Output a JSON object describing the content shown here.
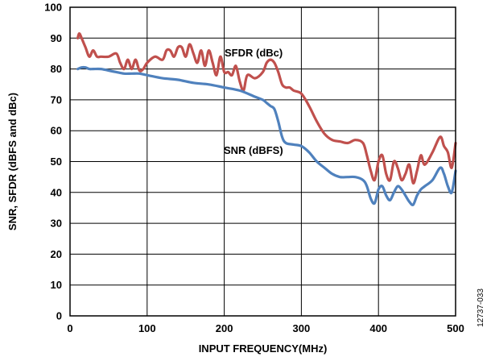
{
  "chart_data": {
    "type": "line",
    "xlabel": "INPUT FREQUENCY(MHz)",
    "ylabel": "SNR, SFDR (dBFS and dBc)",
    "xlim": [
      0,
      500
    ],
    "ylim": [
      0,
      100
    ],
    "x_ticks": [
      0,
      100,
      200,
      300,
      400,
      500
    ],
    "y_ticks": [
      0,
      10,
      20,
      30,
      40,
      50,
      60,
      70,
      80,
      90,
      100
    ],
    "grid": true,
    "figure_id": "12737-033",
    "series": [
      {
        "name": "SFDR (dBc)",
        "color": "#c0504d",
        "x": [
          10,
          12,
          15,
          20,
          25,
          30,
          35,
          40,
          50,
          60,
          65,
          70,
          75,
          80,
          85,
          90,
          95,
          100,
          110,
          120,
          125,
          130,
          135,
          140,
          145,
          150,
          155,
          160,
          165,
          170,
          175,
          180,
          185,
          190,
          195,
          200,
          205,
          210,
          215,
          220,
          225,
          230,
          240,
          250,
          255,
          260,
          265,
          270,
          275,
          280,
          285,
          290,
          300,
          310,
          320,
          330,
          340,
          350,
          360,
          370,
          380,
          385,
          390,
          395,
          400,
          405,
          410,
          415,
          420,
          425,
          430,
          435,
          440,
          445,
          450,
          455,
          460,
          470,
          480,
          485,
          490,
          495,
          500
        ],
        "y": [
          90,
          91.5,
          90,
          87,
          84,
          86,
          84,
          84,
          84,
          85,
          82,
          80,
          83,
          80,
          83,
          79.5,
          80,
          82,
          84,
          83,
          86,
          86,
          84,
          87,
          87,
          84,
          88,
          85,
          82,
          86,
          81,
          86,
          82,
          78,
          84,
          79,
          79,
          78,
          81,
          76,
          73,
          78,
          77,
          79,
          82,
          83,
          82,
          79,
          75,
          74,
          74,
          73,
          72,
          68,
          63,
          59,
          57,
          56.5,
          56,
          57,
          56,
          52,
          47,
          44,
          50,
          52,
          46,
          44,
          50,
          48,
          44,
          46,
          49,
          43,
          47,
          52,
          49,
          53,
          58,
          55,
          53,
          48,
          56
        ]
      },
      {
        "name": "SNR (dBFS)",
        "color": "#4f81bd",
        "x": [
          10,
          15,
          20,
          25,
          30,
          40,
          50,
          60,
          70,
          80,
          90,
          100,
          120,
          140,
          160,
          180,
          200,
          220,
          240,
          250,
          255,
          260,
          265,
          270,
          275,
          280,
          290,
          300,
          310,
          320,
          330,
          340,
          350,
          360,
          370,
          380,
          385,
          390,
          395,
          400,
          405,
          410,
          415,
          420,
          425,
          430,
          435,
          440,
          445,
          450,
          455,
          460,
          470,
          480,
          485,
          490,
          495,
          500
        ],
        "y": [
          80,
          80.5,
          80.5,
          80,
          80,
          80,
          79.5,
          79,
          78.5,
          78.5,
          78.5,
          78,
          77,
          76.5,
          75.5,
          75,
          74,
          73,
          71,
          70,
          69,
          68,
          67,
          63,
          58,
          56,
          55.5,
          55,
          53,
          50,
          48,
          46,
          45,
          45,
          45,
          44,
          42,
          38,
          36.5,
          41,
          42,
          39,
          37.5,
          40,
          42,
          41,
          39,
          37,
          36,
          39,
          41,
          42,
          44,
          48,
          46,
          42,
          40,
          47
        ]
      }
    ]
  }
}
